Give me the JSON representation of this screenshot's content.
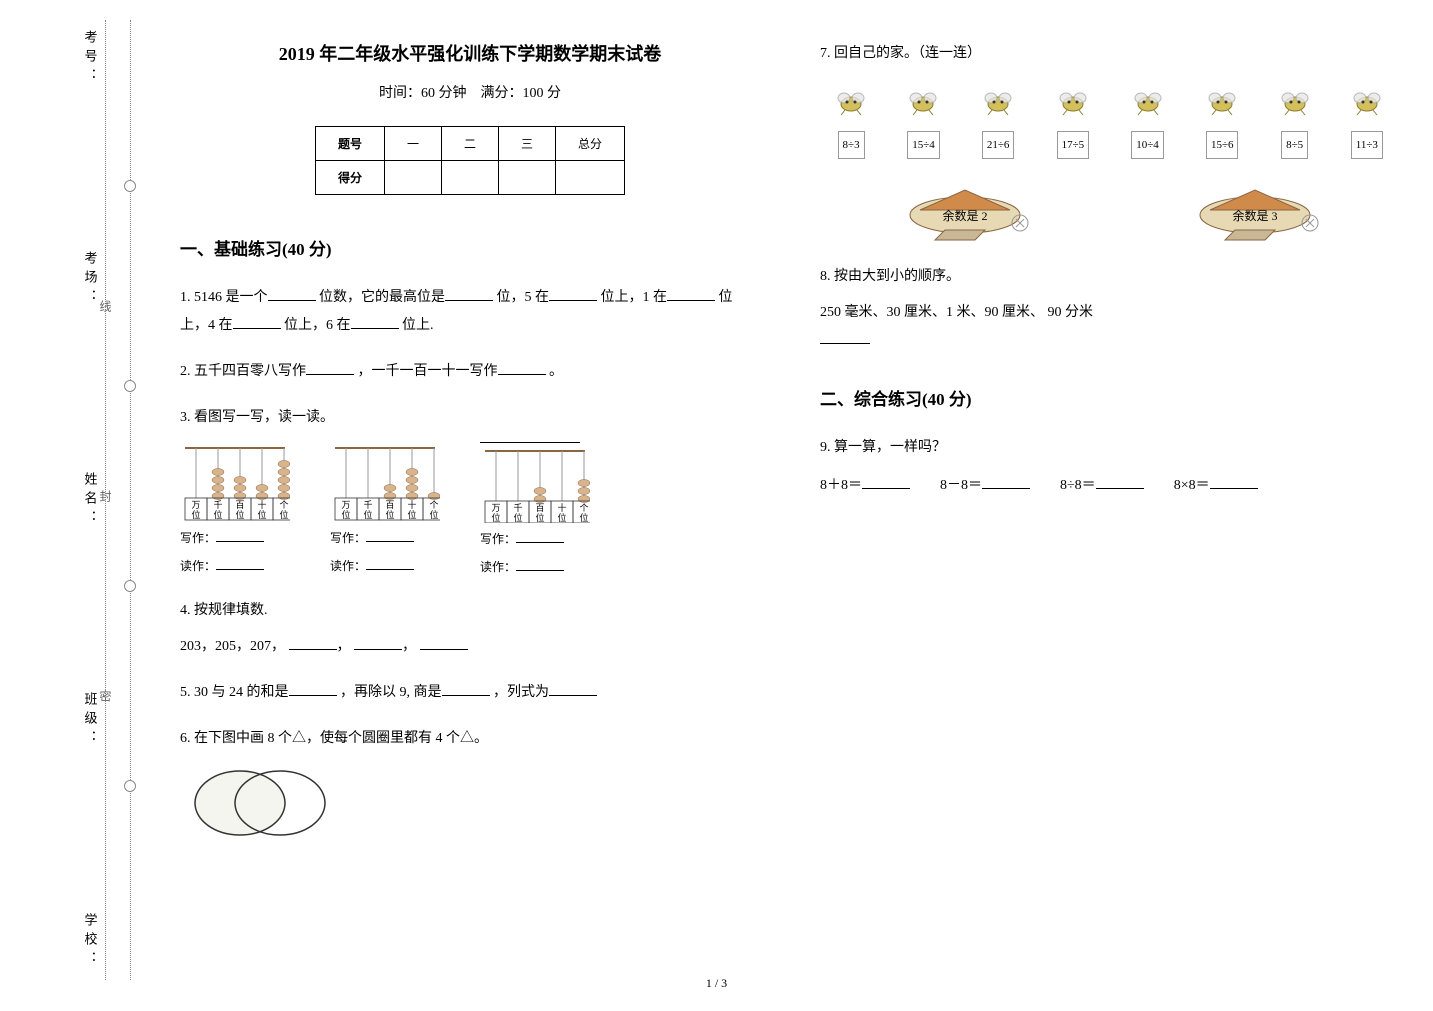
{
  "sidebar": {
    "labels": [
      "考号：",
      "考场：",
      "姓名：",
      "班级：",
      "学校："
    ],
    "annotations": [
      "线",
      "封",
      "密"
    ]
  },
  "header": {
    "title": "2019 年二年级水平强化训练下学期数学期末试卷",
    "subtitle": "时间：60 分钟　满分：100 分"
  },
  "score_table": {
    "row1": [
      "题号",
      "一",
      "二",
      "三",
      "总分"
    ],
    "row2_label": "得分"
  },
  "sections": {
    "s1": "一、基础练习(40 分)",
    "s2": "二、综合练习(40 分)"
  },
  "q1": {
    "n": "1.",
    "t1": "5146 是一个",
    "t2": "位数，它的最高位是",
    "t3": "位，5 在",
    "t4": "位上，1 在",
    "t5": "位上，4 在",
    "t6": "位上，6 在",
    "t7": "位上."
  },
  "q2": {
    "n": "2.",
    "t1": "五千四百零八写作",
    "t2": "，一千一百一十一写作",
    "t3": "。"
  },
  "q3": {
    "n": "3.",
    "title": "看图写一写，读一读。",
    "place_labels": [
      "万位",
      "千位",
      "百位",
      "十位",
      "个位"
    ],
    "write_label": "写作：",
    "read_label": "读作：",
    "abacus": [
      {
        "beads": [
          0,
          4,
          3,
          2,
          5
        ]
      },
      {
        "beads": [
          0,
          0,
          2,
          4,
          1
        ]
      },
      {
        "beads": [
          0,
          0,
          2,
          0,
          3
        ]
      }
    ],
    "bead_color": "#d9b38c",
    "frame_color": "#8a6642"
  },
  "q4": {
    "n": "4.",
    "title": "按规律填数.",
    "seq": "203，205，207，"
  },
  "q5": {
    "n": "5.",
    "t1": "30 与 24 的和是",
    "t2": "，再除以 9, 商是",
    "t3": "，列式为"
  },
  "q6": {
    "n": "6.",
    "text": "在下图中画 8 个△，使每个圆圈里都有 4 个△。",
    "venn": {
      "stroke": "#333",
      "fill": "#f5f5f0"
    }
  },
  "q7": {
    "n": "7.",
    "title": "回自己的家。（连一连）",
    "exprs": [
      "8÷3",
      "15÷4",
      "21÷6",
      "17÷5",
      "10÷4",
      "15÷6",
      "8÷5",
      "11÷3"
    ],
    "bee_color": "#d4c05a",
    "home1": "余数是 2",
    "home2": "余数是 3",
    "home_colors": {
      "roof": "#d08a4a",
      "wall": "#e8d9b5",
      "sign": "#ffffff"
    }
  },
  "q8": {
    "n": "8.",
    "title": "按由大到小的顺序。",
    "items": "250 毫米、30 厘米、1 米、90 厘米、 90 分米"
  },
  "q9": {
    "n": "9.",
    "title": "算一算，一样吗？",
    "e1": "8＋8＝",
    "e2": "8－8＝",
    "e3": "8÷8＝",
    "e4": "8×8＝"
  },
  "page_num": "1 / 3"
}
